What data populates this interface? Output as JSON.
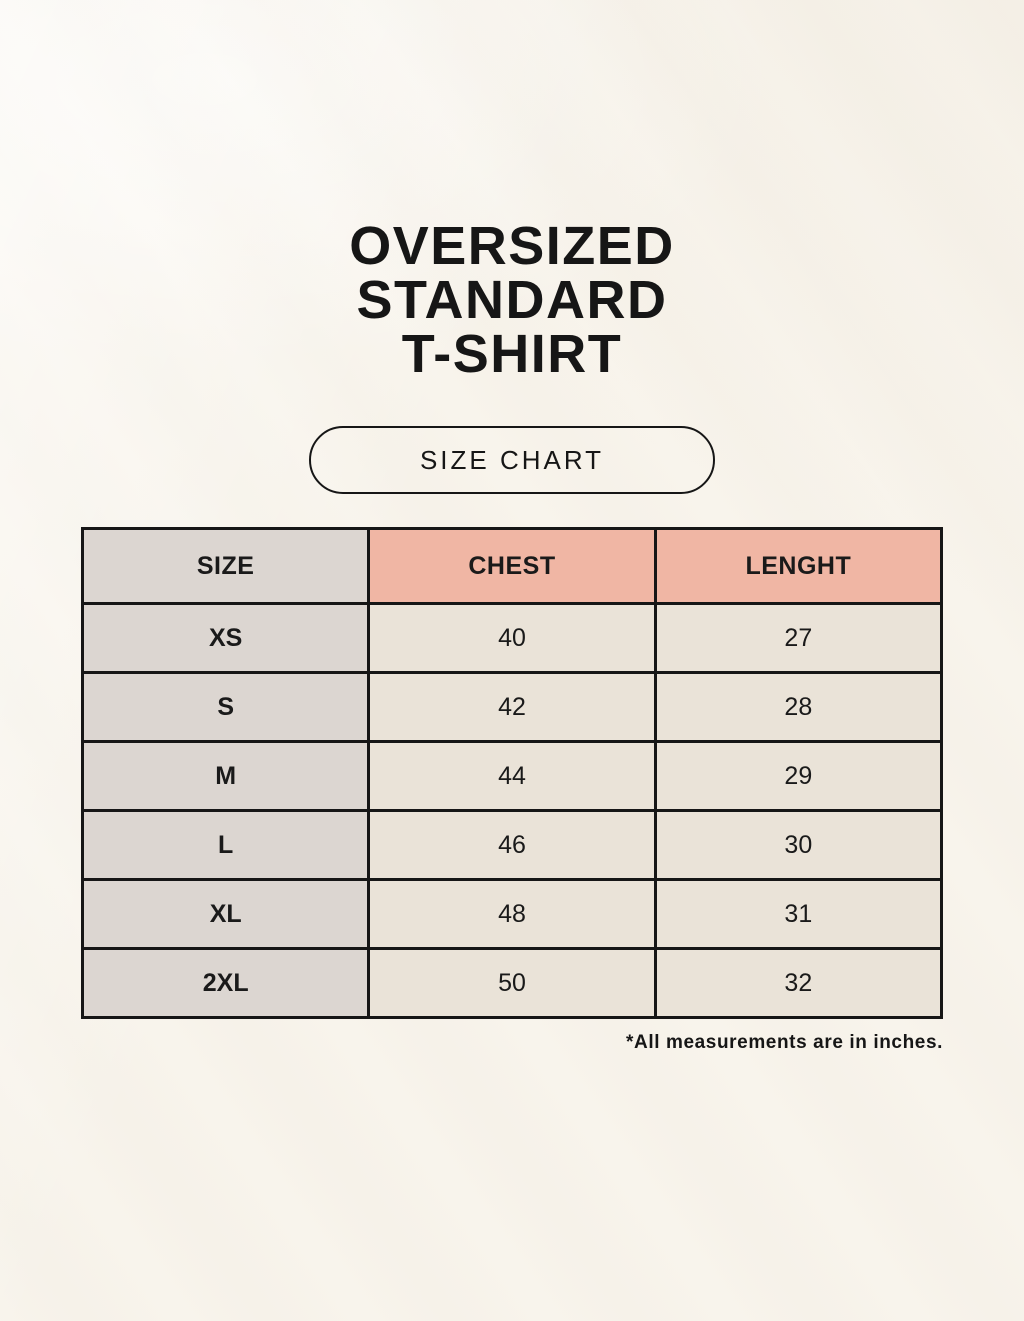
{
  "page": {
    "title_lines": [
      "OVERSIZED",
      "STANDARD",
      "T-SHIRT"
    ],
    "size_chart_button_label": "SIZE CHART",
    "footnote": "*All measurements are in inches."
  },
  "table": {
    "headers": [
      "SIZE",
      "CHEST",
      "LENGHT"
    ],
    "rows": [
      {
        "size": "XS",
        "chest": "40",
        "length": "27"
      },
      {
        "size": "S",
        "chest": "42",
        "length": "28"
      },
      {
        "size": "M",
        "chest": "44",
        "length": "29"
      },
      {
        "size": "L",
        "chest": "46",
        "length": "30"
      },
      {
        "size": "XL",
        "chest": "48",
        "length": "31"
      },
      {
        "size": "2XL",
        "chest": "50",
        "length": "32"
      }
    ]
  },
  "colors": {
    "background_cream": "#f8f4ec",
    "header_pink": "#f0b6a4",
    "size_column_gray": "#dcd6d1",
    "cell_cream": "#eae3d8",
    "border_and_text_black": "#161616"
  },
  "chart_data": {
    "type": "table",
    "title": "OVERSIZED STANDARD T-SHIRT",
    "subtitle": "SIZE CHART",
    "columns": [
      "SIZE",
      "CHEST",
      "LENGHT"
    ],
    "rows": [
      [
        "XS",
        40,
        27
      ],
      [
        "S",
        42,
        28
      ],
      [
        "M",
        44,
        29
      ],
      [
        "L",
        46,
        30
      ],
      [
        "XL",
        48,
        31
      ],
      [
        "2XL",
        50,
        32
      ]
    ],
    "units": "inches",
    "note": "*All measurements are in inches."
  }
}
